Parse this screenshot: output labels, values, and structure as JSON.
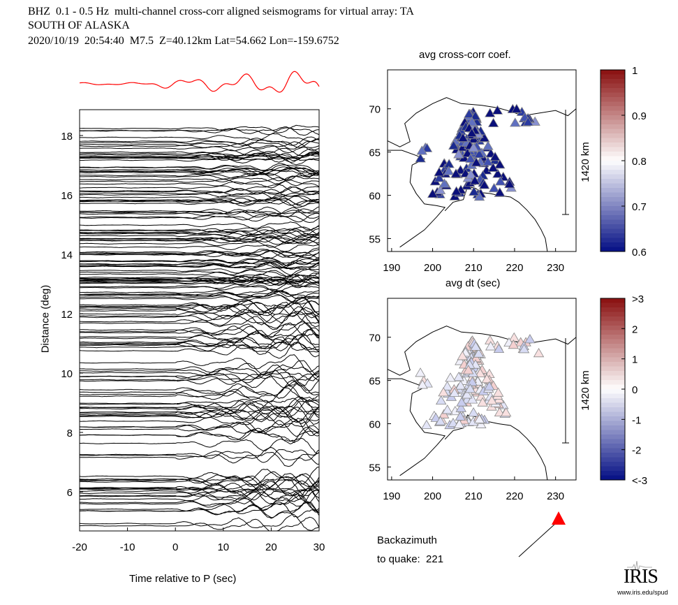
{
  "header": {
    "line1": "BHZ  0.1 - 0.5 Hz  multi-channel cross-corr aligned seismograms for virtual array: TA",
    "line2": "SOUTH OF ALASKA",
    "line3": "2020/10/19  20:54:40  M7.5  Z=40.12km Lat=54.662 Lon=-159.6752"
  },
  "chart_data": [
    {
      "type": "line",
      "title": "",
      "xlabel": "Time relative to P (sec)",
      "ylabel": "Distance (deg)",
      "xlim": [
        -20,
        30
      ],
      "ylim": [
        4.7,
        18.9
      ],
      "xticks": [
        -20,
        -10,
        0,
        10,
        20,
        30
      ],
      "yticks": [
        6,
        8,
        10,
        12,
        14,
        16,
        18
      ],
      "stack_trace_color": "#ff0000",
      "trace_color": "#000000"
    },
    {
      "type": "scatter",
      "title": "avg cross-corr coef.",
      "xlabel": "avg dt (sec)",
      "ylabel": "",
      "xlim": [
        189,
        235
      ],
      "ylim": [
        53.5,
        74.5
      ],
      "xticks": [
        190,
        200,
        210,
        220,
        230
      ],
      "yticks": [
        55,
        60,
        65,
        70
      ],
      "scale_bar": "1420 km",
      "colorbar": {
        "ticks": [
          "1",
          "0.9",
          "0.8",
          "0.7",
          "0.6"
        ],
        "range": [
          0.6,
          1
        ]
      }
    },
    {
      "type": "scatter",
      "title": "",
      "xlabel": "",
      "ylabel": "",
      "xlim": [
        189,
        235
      ],
      "ylim": [
        53.5,
        74.5
      ],
      "xticks": [
        190,
        200,
        210,
        220,
        230
      ],
      "yticks": [
        55,
        60,
        65,
        70
      ],
      "scale_bar": "1420 km",
      "colorbar": {
        "ticks": [
          ">3",
          "2",
          "1",
          "0",
          "-1",
          "-2",
          "<-3"
        ],
        "range": [
          -3,
          3
        ]
      }
    }
  ],
  "backazimuth": {
    "label1": "Backazimuth",
    "label2": "to quake:  221",
    "value": 221,
    "marker_color": "#ff0000"
  },
  "logo": {
    "text": "IRIS",
    "url": "www.iris.edu/spud"
  }
}
